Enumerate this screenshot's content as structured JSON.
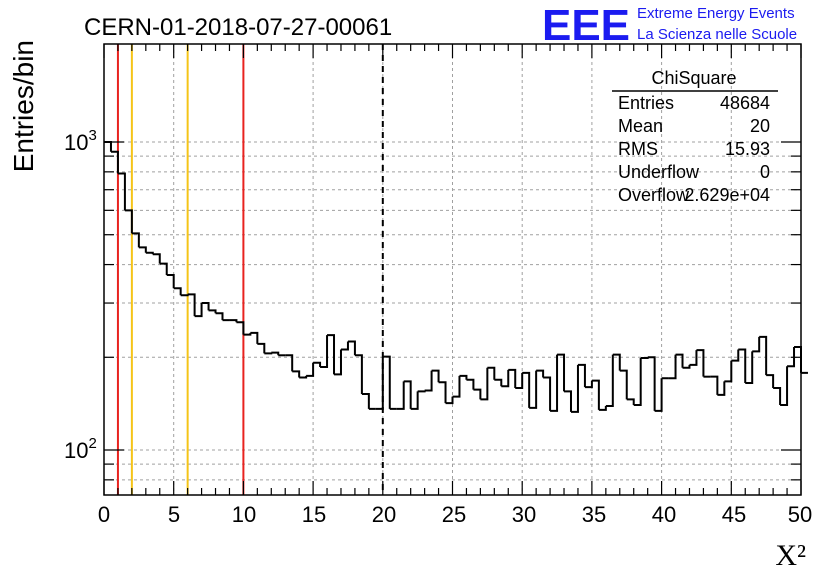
{
  "chart_data": {
    "type": "histogram",
    "title": "CERN-01-2018-07-27-00061",
    "xlabel": "X²",
    "ylabel": "Entries/bin",
    "xlim": [
      0,
      50
    ],
    "ylim": [
      70,
      2000
    ],
    "yscale": "log",
    "grid": true,
    "bin_width": 0.5,
    "x_ticks": [
      "0",
      "5",
      "10",
      "15",
      "20",
      "25",
      "30",
      "35",
      "40",
      "45",
      "50"
    ],
    "y_ticks": [
      "10",
      "10"
    ],
    "y_tick_exponents": [
      "2",
      "3"
    ],
    "values": [
      1000,
      930,
      790,
      600,
      505,
      455,
      437,
      432,
      403,
      370,
      335,
      318,
      320,
      272,
      300,
      284,
      278,
      264,
      264,
      260,
      237,
      240,
      221,
      206,
      207,
      203,
      203,
      180,
      172,
      174,
      192,
      186,
      236,
      176,
      212,
      225,
      203,
      152,
      136,
      136,
      201,
      136,
      136,
      167,
      136,
      155,
      156,
      181,
      166,
      142,
      149,
      174,
      169,
      157,
      146,
      185,
      169,
      161,
      182,
      159,
      178,
      137,
      181,
      172,
      134,
      204,
      155,
      133,
      189,
      160,
      168,
      135,
      139,
      204,
      181,
      146,
      140,
      199,
      200,
      134,
      171,
      171,
      204,
      185,
      189,
      211,
      173,
      173,
      151,
      167,
      195,
      212,
      165,
      209,
      233,
      175,
      159,
      140,
      187,
      216,
      178
    ],
    "vertical_lines": [
      {
        "x": 1,
        "color": "#e8231f",
        "style": "solid"
      },
      {
        "x": 2,
        "color": "#f5c418",
        "style": "solid"
      },
      {
        "x": 6,
        "color": "#f5c418",
        "style": "solid"
      },
      {
        "x": 10,
        "color": "#e8231f",
        "style": "solid"
      },
      {
        "x": 20,
        "color": "#000000",
        "style": "dashed"
      }
    ],
    "stats": {
      "title": "ChiSquare",
      "rows": [
        {
          "label": "Entries",
          "value": "48684"
        },
        {
          "label": "Mean",
          "value": "20"
        },
        {
          "label": "RMS",
          "value": "15.93"
        },
        {
          "label": "Underflow",
          "value": "0"
        },
        {
          "label": "Overflow",
          "value": "2.629e+04"
        }
      ]
    }
  },
  "logo": {
    "mark": "EEE",
    "line1": "Extreme Energy Events",
    "line2": "La Scienza nelle Scuole",
    "color": "#1b1bf0"
  }
}
